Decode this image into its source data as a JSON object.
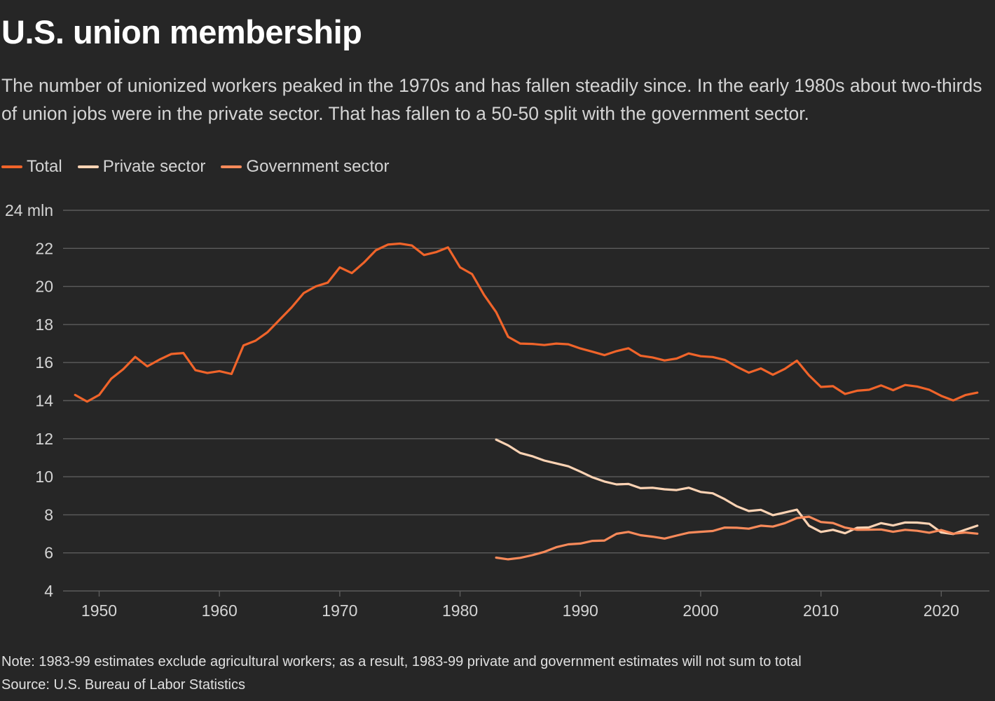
{
  "title": "U.S. union membership",
  "subtitle": "The number of unionized workers peaked in the 1970s and has fallen steadily since. In the early 1980s about two-thirds of union jobs were in the private sector. That has fallen to a 50-50 split with the government sector.",
  "note": "Note: 1983-99 estimates exclude agricultural workers; as a result, 1983-99 private and government estimates will not sum to total",
  "source": "Source: U.S. Bureau of Labor Statistics",
  "colors": {
    "background": "#262626",
    "grid": "#5c5c5c",
    "text": "#d4d4d4"
  },
  "chart_data": {
    "type": "line",
    "xlim": [
      1947,
      2024
    ],
    "ylim": [
      4,
      24
    ],
    "y_unit": "mln",
    "y_ticks": [
      4,
      6,
      8,
      10,
      12,
      14,
      16,
      18,
      20,
      22,
      24
    ],
    "x_ticks": [
      1950,
      1960,
      1970,
      1980,
      1990,
      2000,
      2010,
      2020
    ],
    "grid": "horizontal",
    "legend_position": "top-left",
    "series": [
      {
        "name": "Total",
        "color": "#f0642a",
        "x": [
          1948,
          1949,
          1950,
          1951,
          1952,
          1953,
          1954,
          1955,
          1956,
          1957,
          1958,
          1959,
          1960,
          1961,
          1962,
          1963,
          1964,
          1965,
          1966,
          1967,
          1968,
          1969,
          1970,
          1971,
          1972,
          1973,
          1974,
          1975,
          1976,
          1977,
          1978,
          1979,
          1980,
          1981,
          1982,
          1983,
          1984,
          1985,
          1986,
          1987,
          1988,
          1989,
          1990,
          1991,
          1992,
          1993,
          1994,
          1995,
          1996,
          1997,
          1998,
          1999,
          2000,
          2001,
          2002,
          2003,
          2004,
          2005,
          2006,
          2007,
          2008,
          2009,
          2010,
          2011,
          2012,
          2013,
          2014,
          2015,
          2016,
          2017,
          2018,
          2019,
          2020,
          2021,
          2022,
          2023
        ],
        "values": [
          14.3,
          13.95,
          14.3,
          15.15,
          15.65,
          16.3,
          15.8,
          16.15,
          16.45,
          16.5,
          15.6,
          15.45,
          15.55,
          15.4,
          16.9,
          17.15,
          17.6,
          18.25,
          18.9,
          19.65,
          20.0,
          20.2,
          21.0,
          20.7,
          21.25,
          21.9,
          22.2,
          22.25,
          22.15,
          21.65,
          21.8,
          22.05,
          21.0,
          20.65,
          19.55,
          18.65,
          17.35,
          17.0,
          16.98,
          16.92,
          17.0,
          16.96,
          16.74,
          16.57,
          16.39,
          16.6,
          16.75,
          16.36,
          16.27,
          16.11,
          16.21,
          16.48,
          16.33,
          16.29,
          16.14,
          15.78,
          15.47,
          15.69,
          15.36,
          15.67,
          16.1,
          15.33,
          14.72,
          14.76,
          14.35,
          14.52,
          14.57,
          14.8,
          14.55,
          14.82,
          14.74,
          14.57,
          14.25,
          14.01,
          14.29,
          14.42
        ]
      },
      {
        "name": "Private sector",
        "color": "#fcd3b4",
        "x": [
          1983,
          1984,
          1985,
          1986,
          1987,
          1988,
          1989,
          1990,
          1991,
          1992,
          1993,
          1994,
          1995,
          1996,
          1997,
          1998,
          1999,
          2000,
          2001,
          2002,
          2003,
          2004,
          2005,
          2006,
          2007,
          2008,
          2009,
          2010,
          2011,
          2012,
          2013,
          2014,
          2015,
          2016,
          2017,
          2018,
          2019,
          2020,
          2021,
          2022,
          2023
        ],
        "values": [
          11.95,
          11.65,
          11.25,
          11.08,
          10.85,
          10.7,
          10.55,
          10.27,
          9.97,
          9.75,
          9.6,
          9.62,
          9.4,
          9.42,
          9.34,
          9.3,
          9.42,
          9.2,
          9.13,
          8.82,
          8.45,
          8.2,
          8.26,
          7.98,
          8.12,
          8.27,
          7.43,
          7.1,
          7.21,
          7.03,
          7.32,
          7.34,
          7.56,
          7.44,
          7.6,
          7.59,
          7.53,
          7.07,
          6.99,
          7.22,
          7.43
        ]
      },
      {
        "name": "Government sector",
        "color": "#f88a5a",
        "x": [
          1983,
          1984,
          1985,
          1986,
          1987,
          1988,
          1989,
          1990,
          1991,
          1992,
          1993,
          1994,
          1995,
          1996,
          1997,
          1998,
          1999,
          2000,
          2001,
          2002,
          2003,
          2004,
          2005,
          2006,
          2007,
          2008,
          2009,
          2010,
          2011,
          2012,
          2013,
          2014,
          2015,
          2016,
          2017,
          2018,
          2019,
          2020,
          2021,
          2022,
          2023
        ],
        "values": [
          5.75,
          5.66,
          5.74,
          5.88,
          6.05,
          6.3,
          6.45,
          6.49,
          6.63,
          6.65,
          7.0,
          7.1,
          6.93,
          6.85,
          6.75,
          6.91,
          7.06,
          7.11,
          7.15,
          7.33,
          7.32,
          7.27,
          7.43,
          7.38,
          7.56,
          7.83,
          7.9,
          7.62,
          7.57,
          7.33,
          7.21,
          7.22,
          7.23,
          7.11,
          7.21,
          7.16,
          7.06,
          7.2,
          7.01,
          7.07,
          7.01
        ]
      }
    ]
  }
}
